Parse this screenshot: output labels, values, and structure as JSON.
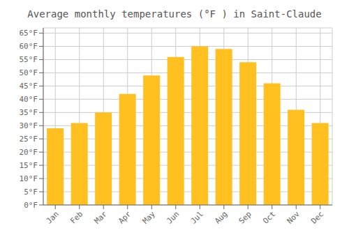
{
  "chart_data": {
    "type": "bar",
    "title": "Average monthly temperatures (°F ) in Saint-Claude",
    "categories": [
      "Jan",
      "Feb",
      "Mar",
      "Apr",
      "May",
      "Jun",
      "Jul",
      "Aug",
      "Sep",
      "Oct",
      "Nov",
      "Dec"
    ],
    "values": [
      29,
      31,
      35,
      42,
      49,
      56,
      60,
      59,
      54,
      46,
      36,
      31
    ],
    "color": "#FFC020",
    "ylim": [
      0,
      67
    ],
    "yticks": [
      {
        "value": 0,
        "label": "0°F"
      },
      {
        "value": 5,
        "label": "5°F"
      },
      {
        "value": 10,
        "label": "10°F"
      },
      {
        "value": 15,
        "label": "15°F"
      },
      {
        "value": 20,
        "label": "20°F"
      },
      {
        "value": 25,
        "label": "25°F"
      },
      {
        "value": 30,
        "label": "30°F"
      },
      {
        "value": 35,
        "label": "35°F"
      },
      {
        "value": 40,
        "label": "40°F"
      },
      {
        "value": 45,
        "label": "45°F"
      },
      {
        "value": 50,
        "label": "50°F"
      },
      {
        "value": 55,
        "label": "55°F"
      },
      {
        "value": 60,
        "label": "60°F"
      },
      {
        "value": 65,
        "label": "65°F"
      }
    ],
    "grid": true
  }
}
